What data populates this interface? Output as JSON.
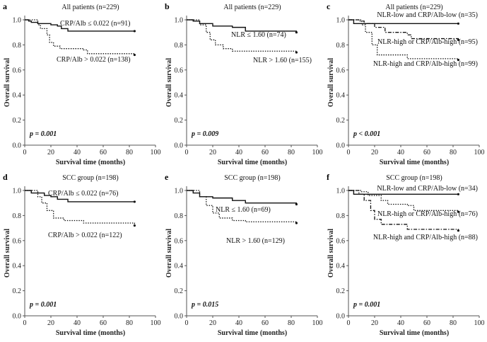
{
  "chart_data": [
    {
      "panel": "a",
      "type": "line",
      "title": "All patients (n=229)",
      "xlabel": "Survival time (months)",
      "ylabel": "Overall survival",
      "xlim": [
        0,
        100
      ],
      "ylim": [
        0,
        1
      ],
      "xticks": [
        "0",
        "20",
        "40",
        "60",
        "80",
        "100"
      ],
      "yticks": [
        "0.0",
        "0.2",
        "0.4",
        "0.6",
        "0.8",
        "1.0"
      ],
      "pvalue": "p = 0.001",
      "series": [
        {
          "name": "CRP/Alb ≤ 0.022 (n=91)",
          "style": "solid",
          "points": [
            [
              0,
              1
            ],
            [
              3,
              0.99
            ],
            [
              5,
              0.98
            ],
            [
              10,
              0.97
            ],
            [
              20,
              0.96
            ],
            [
              25,
              0.95
            ],
            [
              28,
              0.93
            ],
            [
              33,
              0.91
            ],
            [
              84,
              0.91
            ]
          ]
        },
        {
          "name": "CRP/Alb > 0.022 (n=138)",
          "style": "dotted",
          "points": [
            [
              0,
              1
            ],
            [
              10,
              0.96
            ],
            [
              12,
              0.93
            ],
            [
              17,
              0.88
            ],
            [
              19,
              0.82
            ],
            [
              22,
              0.79
            ],
            [
              27,
              0.77
            ],
            [
              45,
              0.76
            ],
            [
              48,
              0.73
            ],
            [
              84,
              0.72
            ]
          ]
        }
      ]
    },
    {
      "panel": "b",
      "type": "line",
      "title": "All patients (n=229)",
      "xlabel": "Survival time (months)",
      "ylabel": "Overall survival",
      "xlim": [
        0,
        100
      ],
      "ylim": [
        0,
        1
      ],
      "xticks": [
        "0",
        "20",
        "40",
        "60",
        "80",
        "100"
      ],
      "yticks": [
        "0.0",
        "0.2",
        "0.4",
        "0.6",
        "0.8",
        "1.0"
      ],
      "pvalue": "p = 0.009",
      "series": [
        {
          "name": "NLR ≤ 1.60 (n=74)",
          "style": "solid",
          "points": [
            [
              0,
              1
            ],
            [
              5,
              0.99
            ],
            [
              10,
              0.97
            ],
            [
              20,
              0.95
            ],
            [
              35,
              0.94
            ],
            [
              45,
              0.91
            ],
            [
              84,
              0.9
            ]
          ]
        },
        {
          "name": "NLR > 1.60 (n=155)",
          "style": "dotted",
          "points": [
            [
              0,
              1
            ],
            [
              10,
              0.96
            ],
            [
              15,
              0.9
            ],
            [
              18,
              0.84
            ],
            [
              22,
              0.8
            ],
            [
              28,
              0.77
            ],
            [
              35,
              0.75
            ],
            [
              84,
              0.74
            ]
          ]
        }
      ]
    },
    {
      "panel": "c",
      "type": "line",
      "title": "All patients (n=229)",
      "xlabel": "Survival time (months)",
      "ylabel": "Overall survival",
      "xlim": [
        0,
        100
      ],
      "ylim": [
        0,
        1
      ],
      "xticks": [
        "0",
        "20",
        "40",
        "60",
        "80",
        "100"
      ],
      "yticks": [
        "0.0",
        "0.2",
        "0.4",
        "0.6",
        "0.8",
        "1.0"
      ],
      "pvalue": "p < 0.001",
      "series": [
        {
          "name": "NLR-low and CRP/Alb-low (n=35)",
          "style": "solid",
          "points": [
            [
              0,
              1
            ],
            [
              4,
              0.97
            ],
            [
              84,
              0.97
            ]
          ]
        },
        {
          "name": "NLR-high or CRP/Alb-high (n=95)",
          "style": "dashdot",
          "points": [
            [
              0,
              1
            ],
            [
              8,
              0.99
            ],
            [
              12,
              0.97
            ],
            [
              20,
              0.94
            ],
            [
              28,
              0.9
            ],
            [
              45,
              0.88
            ],
            [
              48,
              0.85
            ],
            [
              84,
              0.84
            ]
          ]
        },
        {
          "name": "NLR-high and CRP/Alb-high (n=99)",
          "style": "dotted",
          "points": [
            [
              0,
              1
            ],
            [
              10,
              0.96
            ],
            [
              13,
              0.9
            ],
            [
              18,
              0.8
            ],
            [
              22,
              0.72
            ],
            [
              45,
              0.69
            ],
            [
              84,
              0.68
            ]
          ]
        }
      ]
    },
    {
      "panel": "d",
      "type": "line",
      "title": "SCC group (n=198)",
      "xlabel": "Survival time (months)",
      "ylabel": "Overall survival",
      "xlim": [
        0,
        100
      ],
      "ylim": [
        0,
        1
      ],
      "xticks": [
        "0",
        "20",
        "40",
        "60",
        "80",
        "100"
      ],
      "yticks": [
        "0.0",
        "0.2",
        "0.4",
        "0.6",
        "0.8",
        "1.0"
      ],
      "pvalue": "p = 0.001",
      "series": [
        {
          "name": "CRP/Alb ≤ 0.022 (n=76)",
          "style": "solid",
          "points": [
            [
              0,
              1
            ],
            [
              5,
              0.98
            ],
            [
              15,
              0.96
            ],
            [
              20,
              0.95
            ],
            [
              25,
              0.93
            ],
            [
              33,
              0.91
            ],
            [
              84,
              0.91
            ]
          ]
        },
        {
          "name": "CRP/Alb > 0.022 (n=122)",
          "style": "dotted",
          "points": [
            [
              0,
              1
            ],
            [
              10,
              0.95
            ],
            [
              13,
              0.9
            ],
            [
              17,
              0.84
            ],
            [
              22,
              0.78
            ],
            [
              30,
              0.76
            ],
            [
              45,
              0.74
            ],
            [
              84,
              0.72
            ]
          ]
        }
      ]
    },
    {
      "panel": "e",
      "type": "line",
      "title": "SCC group (n=198)",
      "xlabel": "Survival time (months)",
      "ylabel": "Overall survival",
      "xlim": [
        0,
        100
      ],
      "ylim": [
        0,
        1
      ],
      "xticks": [
        "0",
        "20",
        "40",
        "60",
        "80",
        "100"
      ],
      "yticks": [
        "0.0",
        "0.2",
        "0.4",
        "0.6",
        "0.8",
        "1.0"
      ],
      "pvalue": "p = 0.015",
      "series": [
        {
          "name": "NLR ≤ 1.60 (n=69)",
          "style": "solid",
          "points": [
            [
              0,
              1
            ],
            [
              5,
              0.98
            ],
            [
              10,
              0.95
            ],
            [
              20,
              0.94
            ],
            [
              35,
              0.92
            ],
            [
              45,
              0.9
            ],
            [
              84,
              0.89
            ]
          ]
        },
        {
          "name": "NLR > 1.60 (n=129)",
          "style": "dotted",
          "points": [
            [
              0,
              1
            ],
            [
              10,
              0.95
            ],
            [
              15,
              0.88
            ],
            [
              20,
              0.82
            ],
            [
              25,
              0.78
            ],
            [
              35,
              0.76
            ],
            [
              45,
              0.75
            ],
            [
              84,
              0.74
            ]
          ]
        }
      ]
    },
    {
      "panel": "f",
      "type": "line",
      "title": "SCC group (n=198)",
      "xlabel": "Survival time (months)",
      "ylabel": "Overall survival",
      "xlim": [
        0,
        100
      ],
      "ylim": [
        0,
        1
      ],
      "xticks": [
        "0",
        "20",
        "40",
        "60",
        "80",
        "100"
      ],
      "yticks": [
        "0.0",
        "0.2",
        "0.4",
        "0.6",
        "0.8",
        "1.0"
      ],
      "pvalue": "p = 0.001",
      "series": [
        {
          "name": "NLR-low and CRP/Alb-low (n=34)",
          "style": "solid",
          "points": [
            [
              0,
              1
            ],
            [
              4,
              0.97
            ],
            [
              84,
              0.97
            ]
          ]
        },
        {
          "name": "NLR-high or CRP/Alb-high (n=76)",
          "style": "dotted",
          "points": [
            [
              0,
              1
            ],
            [
              10,
              0.99
            ],
            [
              15,
              0.96
            ],
            [
              25,
              0.92
            ],
            [
              30,
              0.89
            ],
            [
              45,
              0.88
            ],
            [
              50,
              0.84
            ],
            [
              84,
              0.83
            ]
          ]
        },
        {
          "name": "NLR-high and CRP/Alb-high (n=88)",
          "style": "dashdot",
          "points": [
            [
              0,
              1
            ],
            [
              8,
              0.97
            ],
            [
              12,
              0.92
            ],
            [
              17,
              0.84
            ],
            [
              20,
              0.77
            ],
            [
              25,
              0.73
            ],
            [
              45,
              0.69
            ],
            [
              84,
              0.68
            ]
          ]
        }
      ]
    }
  ]
}
